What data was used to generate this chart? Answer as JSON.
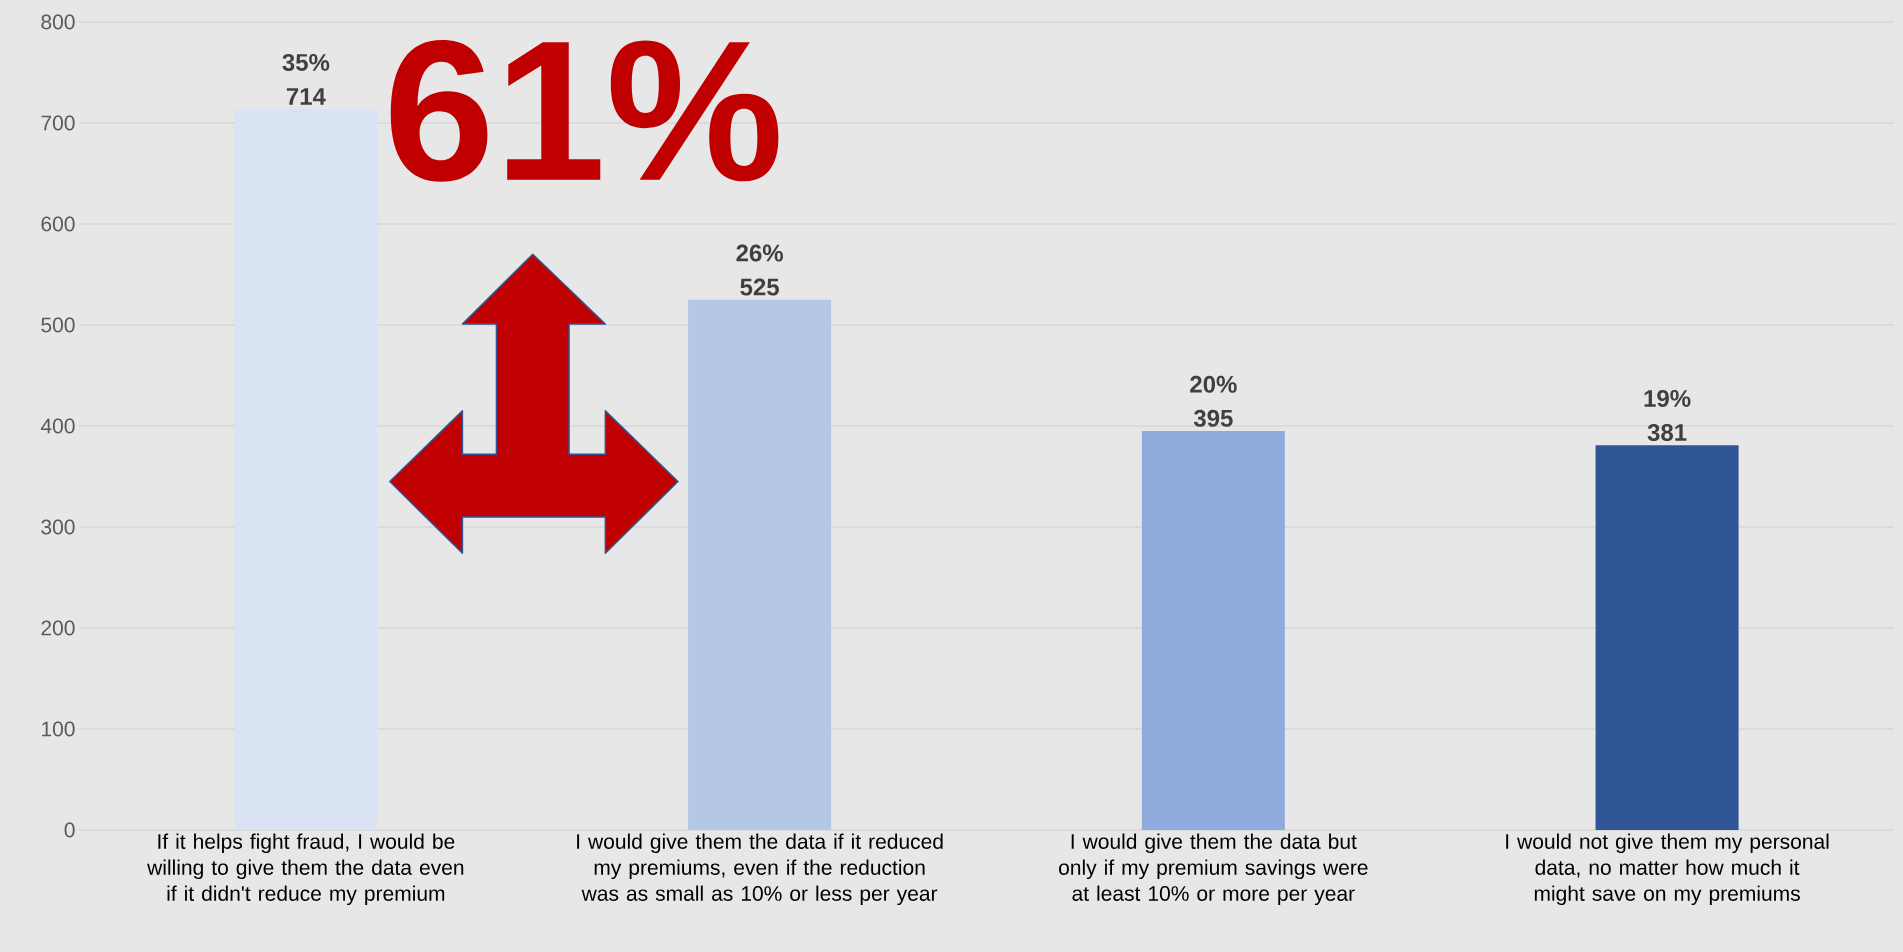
{
  "chart_data": {
    "type": "bar",
    "categories": [
      "If it helps fight fraud, I would be willing to give them the data even if it didn't reduce my premium",
      "I would give them the data if it reduced my premiums, even if the reduction was as small as 10% or less per year",
      "I would give them the data but only if my premium savings were at least 10% or more per year",
      "I would not give them my personal data, no matter how much it might save on my premiums"
    ],
    "values": [
      714,
      525,
      395,
      381
    ],
    "colors": [
      "#dae3f3",
      "#b4c7e7",
      "#8faadc",
      "#2f5597"
    ],
    "value_labels": [
      "35% 714",
      "26% 525",
      "20% 395",
      "19% 381"
    ],
    "annotations": [
      "61%"
    ],
    "ylim": [
      0,
      800
    ],
    "yticks": [
      0,
      100,
      200,
      300,
      400,
      500,
      600,
      700,
      800
    ],
    "grid": "y"
  }
}
